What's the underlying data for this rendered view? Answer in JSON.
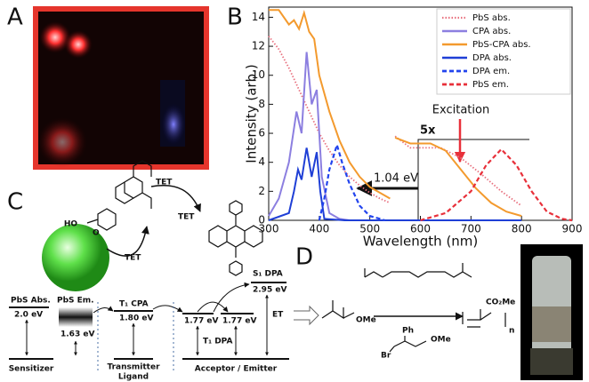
{
  "panels": {
    "labels": [
      "A",
      "B",
      "C",
      "D"
    ]
  },
  "chart_data": {
    "type": "line",
    "xlabel": "Wavelength (nm)",
    "ylabel": "Intensity (arb.)",
    "xlim": [
      300,
      900
    ],
    "ylim": [
      0,
      14.7
    ],
    "xticks": [
      300,
      400,
      500,
      600,
      700,
      800,
      900
    ],
    "yticks": [
      0,
      2,
      4,
      6,
      8,
      10,
      12,
      14
    ],
    "legend": "upper right",
    "annotations": {
      "scale": "5x",
      "excitation": "Excitation",
      "gap": "1.04 eV"
    },
    "series": [
      {
        "name": "PbS abs.",
        "color": "#e8717f",
        "style": "dotted",
        "x": [
          300,
          320,
          340,
          360,
          380,
          400,
          420,
          440,
          460,
          480,
          500,
          520,
          540,
          545,
          550,
          580,
          600,
          640,
          680,
          720,
          760,
          800
        ],
        "values": [
          12.7,
          11.8,
          10.5,
          9,
          7.5,
          6,
          4.8,
          3.8,
          3.0,
          2.4,
          1.9,
          1.5,
          1.2,
          null,
          5.8,
          5.0,
          5.0,
          5.0,
          4.3,
          3.2,
          2.0,
          1.0
        ]
      },
      {
        "name": "CPA abs.",
        "color": "#8c7fe0",
        "style": "solid",
        "x": [
          300,
          320,
          340,
          355,
          365,
          375,
          385,
          395,
          405,
          420,
          440,
          460
        ],
        "values": [
          0.3,
          1.5,
          4,
          7.5,
          6,
          11.6,
          8,
          9,
          3,
          0.5,
          0.1,
          0
        ]
      },
      {
        "name": "PbS-CPA abs.",
        "color": "#f39a2e",
        "style": "solid",
        "x": [
          300,
          320,
          340,
          350,
          360,
          370,
          380,
          390,
          400,
          420,
          440,
          460,
          480,
          500,
          540,
          545,
          550,
          580,
          620,
          650,
          680,
          710,
          740,
          770,
          800
        ],
        "values": [
          14.5,
          14.5,
          13.5,
          13.8,
          13.2,
          14.3,
          13,
          12.5,
          10,
          7.5,
          5.5,
          4.0,
          3.0,
          2.3,
          1.5,
          null,
          5.7,
          5.3,
          5.3,
          4.8,
          3.5,
          2.2,
          1.2,
          0.6,
          0.3
        ]
      },
      {
        "name": "DPA abs.",
        "color": "#1f3fd6",
        "style": "solid",
        "x": [
          300,
          340,
          350,
          358,
          365,
          375,
          385,
          395,
          402,
          410,
          450,
          800
        ],
        "values": [
          0,
          0.5,
          2,
          3.5,
          2.8,
          5,
          3,
          4.7,
          2,
          0.1,
          0,
          0
        ]
      },
      {
        "name": "DPA em.",
        "color": "#2244ee",
        "style": "dashed",
        "x": [
          400,
          410,
          420,
          435,
          445,
          460,
          480,
          500,
          530
        ],
        "values": [
          0,
          1.5,
          3.5,
          5.2,
          4,
          2.5,
          1,
          0.3,
          0
        ]
      },
      {
        "name": "PbS em.",
        "color": "#e8303a",
        "style": "dashed",
        "x": [
          600,
          650,
          700,
          730,
          760,
          790,
          820,
          850,
          880,
          900
        ],
        "values": [
          0,
          0.5,
          2,
          3.8,
          4.9,
          3.8,
          2,
          0.6,
          0.1,
          0
        ]
      }
    ]
  },
  "diagram_c": {
    "tet": [
      "TET",
      "TET",
      "TET"
    ],
    "pbs_abs": "PbS Abs.",
    "pbs_abs_energy": "2.0 eV",
    "pbs_em": "PbS Em.",
    "pbs_em_energy": "1.63 eV",
    "t1_cpa": "T₁ CPA",
    "t1_cpa_energy": "1.80 eV",
    "t1_dpa_energies": [
      "1.77 eV",
      "1.77 eV"
    ],
    "t1_dpa": "T₁ DPA",
    "s1_dpa": "S₁ DPA",
    "s1_dpa_energy": "2.95 eV",
    "et": "ET",
    "sensitizer": "Sensitizer",
    "transmitter_ligand": [
      "Transmitter",
      "Ligand"
    ],
    "acceptor": "Acceptor / Emitter",
    "ho": "HO",
    "o": "O"
  },
  "scheme_d": {
    "ome": [
      "OMe",
      "OMe"
    ],
    "co2me": "CO₂Me",
    "ph": "Ph",
    "br": "Br",
    "n": "n"
  }
}
